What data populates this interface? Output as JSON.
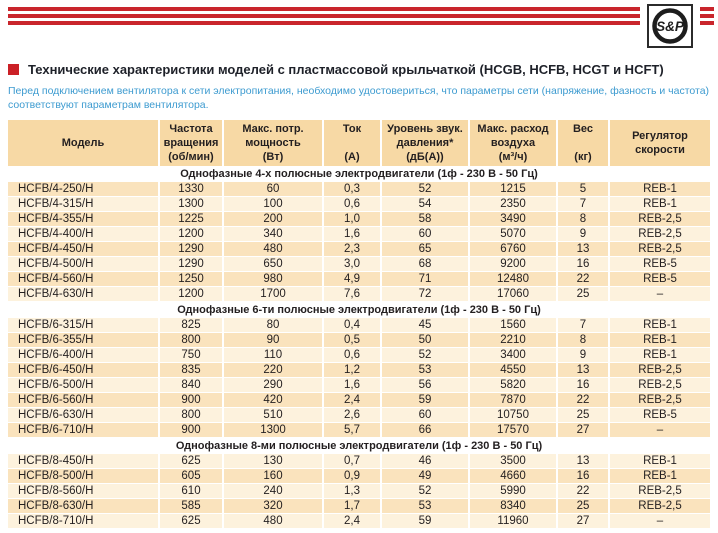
{
  "logo": {
    "text": "S&P"
  },
  "title": {
    "text": "Технические характеристики моделей с пластмассовой крыльчаткой (HCGB, HCFB, HCGT и HCFT)"
  },
  "notice": "Перед подключением вентилятора к сети электропитания, необходимо удостовериться, что параметры сети (напряжение, фазность и частота) соответствуют параметрам вентилятора.",
  "colors": {
    "accent_red": "#c9252c",
    "bullet_red": "#cb2026",
    "header_tan": "#f7d9a5",
    "row_dark": "#fae3bd",
    "row_light": "#fdf2dd",
    "notice_blue": "#3d9bd0",
    "text": "#231f20"
  },
  "table": {
    "columns": [
      "Модель",
      "Частота\nвращения\n(об/мин)",
      "Макс. потр.\nмощность\n(Вт)",
      "Ток\n\n(А)",
      "Уровень звук.\nдавления*\n(дБ(А))",
      "Макс. расход\nвоздуха\n(м³/ч)",
      "Вес\n\n(кг)",
      "Регулятор\nскорости"
    ],
    "sections": [
      {
        "label": "Однофазные 4-х полюсные электродвигатели (1ф - 230 В - 50 Гц)",
        "rows": [
          [
            "HCFB/4-250/H",
            "1330",
            "60",
            "0,3",
            "52",
            "1215",
            "5",
            "REB-1"
          ],
          [
            "HCFB/4-315/H",
            "1300",
            "100",
            "0,6",
            "54",
            "2350",
            "7",
            "REB-1"
          ],
          [
            "HCFB/4-355/H",
            "1225",
            "200",
            "1,0",
            "58",
            "3490",
            "8",
            "REB-2,5"
          ],
          [
            "HCFB/4-400/H",
            "1200",
            "340",
            "1,6",
            "60",
            "5070",
            "9",
            "REB-2,5"
          ],
          [
            "HCFB/4-450/H",
            "1290",
            "480",
            "2,3",
            "65",
            "6760",
            "13",
            "REB-2,5"
          ],
          [
            "HCFB/4-500/H",
            "1290",
            "650",
            "3,0",
            "68",
            "9200",
            "16",
            "REB-5"
          ],
          [
            "HCFB/4-560/H",
            "1250",
            "980",
            "4,9",
            "71",
            "12480",
            "22",
            "REB-5"
          ],
          [
            "HCFB/4-630/H",
            "1200",
            "1700",
            "7,6",
            "72",
            "17060",
            "25",
            "–"
          ]
        ]
      },
      {
        "label": "Однофазные 6-ти полюсные электродвигатели (1ф - 230 В - 50 Гц)",
        "rows": [
          [
            "HCFB/6-315/H",
            "825",
            "80",
            "0,4",
            "45",
            "1560",
            "7",
            "REB-1"
          ],
          [
            "HCFB/6-355/H",
            "800",
            "90",
            "0,5",
            "50",
            "2210",
            "8",
            "REB-1"
          ],
          [
            "HCFB/6-400/H",
            "750",
            "110",
            "0,6",
            "52",
            "3400",
            "9",
            "REB-1"
          ],
          [
            "HCFB/6-450/H",
            "835",
            "220",
            "1,2",
            "53",
            "4550",
            "13",
            "REB-2,5"
          ],
          [
            "HCFB/6-500/H",
            "840",
            "290",
            "1,6",
            "56",
            "5820",
            "16",
            "REB-2,5"
          ],
          [
            "HCFB/6-560/H",
            "900",
            "420",
            "2,4",
            "59",
            "7870",
            "22",
            "REB-2,5"
          ],
          [
            "HCFB/6-630/H",
            "800",
            "510",
            "2,6",
            "60",
            "10750",
            "25",
            "REB-5"
          ],
          [
            "HCFB/6-710/H",
            "900",
            "1300",
            "5,7",
            "66",
            "17570",
            "27",
            "–"
          ]
        ]
      },
      {
        "label": "Однофазные 8-ми полюсные электродвигатели (1ф - 230 В - 50 Гц)",
        "rows": [
          [
            "HCFB/8-450/H",
            "625",
            "130",
            "0,7",
            "46",
            "3500",
            "13",
            "REB-1"
          ],
          [
            "HCFB/8-500/H",
            "605",
            "160",
            "0,9",
            "49",
            "4660",
            "16",
            "REB-1"
          ],
          [
            "HCFB/8-560/H",
            "610",
            "240",
            "1,3",
            "52",
            "5990",
            "22",
            "REB-2,5"
          ],
          [
            "HCFB/8-630/H",
            "585",
            "320",
            "1,7",
            "53",
            "8340",
            "25",
            "REB-2,5"
          ],
          [
            "HCFB/8-710/H",
            "625",
            "480",
            "2,4",
            "59",
            "11960",
            "27",
            "–"
          ]
        ]
      }
    ]
  }
}
